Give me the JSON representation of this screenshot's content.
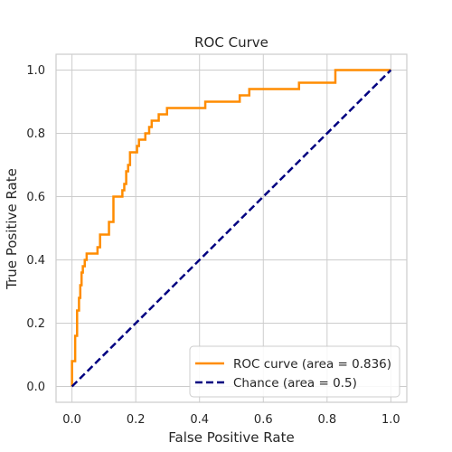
{
  "chart_data": {
    "type": "line",
    "title": "ROC Curve",
    "xlabel": "False Positive Rate",
    "ylabel": "True Positive Rate",
    "xlim": [
      -0.05,
      1.05
    ],
    "ylim": [
      -0.05,
      1.05
    ],
    "xticks": [
      "0.0",
      "0.2",
      "0.4",
      "0.6",
      "0.8",
      "1.0"
    ],
    "yticks": [
      "0.0",
      "0.2",
      "0.4",
      "0.6",
      "0.8",
      "1.0"
    ],
    "grid": true,
    "legend_position": "lower-right",
    "series": [
      {
        "name": "ROC curve (area = 0.836)",
        "color": "#ff8c00",
        "style": "solid",
        "points": [
          [
            0.0,
            0.0
          ],
          [
            0.0,
            0.08
          ],
          [
            0.01,
            0.08
          ],
          [
            0.01,
            0.16
          ],
          [
            0.016,
            0.16
          ],
          [
            0.016,
            0.24
          ],
          [
            0.022,
            0.24
          ],
          [
            0.022,
            0.28
          ],
          [
            0.026,
            0.28
          ],
          [
            0.026,
            0.32
          ],
          [
            0.03,
            0.32
          ],
          [
            0.03,
            0.36
          ],
          [
            0.034,
            0.36
          ],
          [
            0.034,
            0.38
          ],
          [
            0.04,
            0.38
          ],
          [
            0.04,
            0.4
          ],
          [
            0.046,
            0.4
          ],
          [
            0.046,
            0.42
          ],
          [
            0.08,
            0.42
          ],
          [
            0.08,
            0.44
          ],
          [
            0.088,
            0.44
          ],
          [
            0.088,
            0.48
          ],
          [
            0.116,
            0.48
          ],
          [
            0.116,
            0.52
          ],
          [
            0.13,
            0.52
          ],
          [
            0.13,
            0.6
          ],
          [
            0.158,
            0.6
          ],
          [
            0.158,
            0.62
          ],
          [
            0.164,
            0.62
          ],
          [
            0.164,
            0.64
          ],
          [
            0.17,
            0.64
          ],
          [
            0.17,
            0.68
          ],
          [
            0.176,
            0.68
          ],
          [
            0.176,
            0.7
          ],
          [
            0.182,
            0.7
          ],
          [
            0.182,
            0.74
          ],
          [
            0.204,
            0.74
          ],
          [
            0.204,
            0.76
          ],
          [
            0.21,
            0.76
          ],
          [
            0.21,
            0.78
          ],
          [
            0.23,
            0.78
          ],
          [
            0.23,
            0.8
          ],
          [
            0.242,
            0.8
          ],
          [
            0.242,
            0.82
          ],
          [
            0.25,
            0.82
          ],
          [
            0.25,
            0.84
          ],
          [
            0.272,
            0.84
          ],
          [
            0.272,
            0.86
          ],
          [
            0.298,
            0.86
          ],
          [
            0.298,
            0.88
          ],
          [
            0.418,
            0.88
          ],
          [
            0.418,
            0.9
          ],
          [
            0.526,
            0.9
          ],
          [
            0.526,
            0.92
          ],
          [
            0.556,
            0.92
          ],
          [
            0.556,
            0.94
          ],
          [
            0.712,
            0.94
          ],
          [
            0.712,
            0.96
          ],
          [
            0.826,
            0.96
          ],
          [
            0.826,
            1.0
          ],
          [
            1.0,
            1.0
          ]
        ]
      },
      {
        "name": "Chance (area = 0.5)",
        "color": "#000080",
        "style": "dashed",
        "points": [
          [
            0.0,
            0.0
          ],
          [
            1.0,
            1.0
          ]
        ]
      }
    ]
  }
}
